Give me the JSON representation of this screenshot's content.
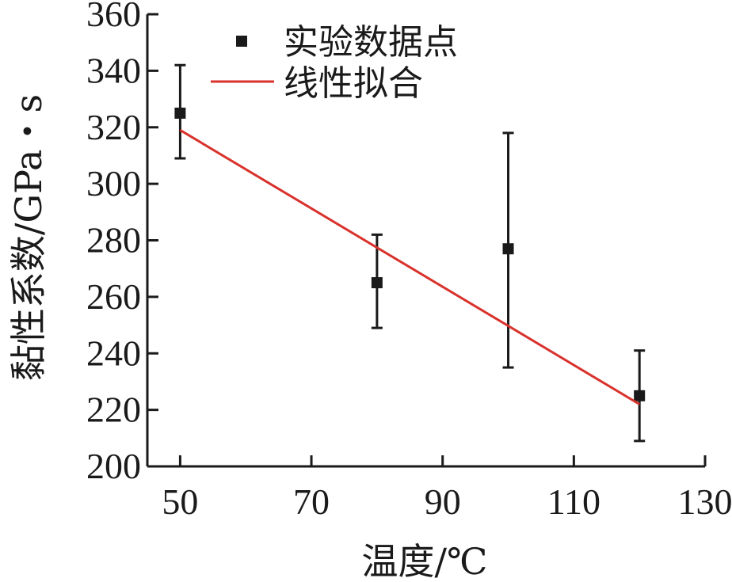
{
  "chart_data": {
    "type": "scatter",
    "title": "",
    "xlabel": "温度/℃",
    "ylabel": "黏性系数/GPa・s",
    "xlim": [
      45,
      130
    ],
    "ylim": [
      200,
      360
    ],
    "xticks": [
      50,
      70,
      90,
      110,
      130
    ],
    "yticks": [
      200,
      220,
      240,
      260,
      280,
      300,
      320,
      340,
      360
    ],
    "grid": false,
    "legend_position": "top-right",
    "series": [
      {
        "name": "实验数据点",
        "kind": "scatter-with-error-bars",
        "marker": "square",
        "color": "#1a1a1a",
        "points": [
          {
            "x": 50,
            "y": 325,
            "err_low": 309,
            "err_high": 342
          },
          {
            "x": 80,
            "y": 265,
            "err_low": 249,
            "err_high": 282
          },
          {
            "x": 100,
            "y": 277,
            "err_low": 235,
            "err_high": 318
          },
          {
            "x": 120,
            "y": 225,
            "err_low": 209,
            "err_high": 241
          }
        ]
      },
      {
        "name": "线性拟合",
        "kind": "line",
        "color": "#d9312b",
        "points": [
          {
            "x": 50,
            "y": 319
          },
          {
            "x": 120,
            "y": 222
          }
        ]
      }
    ]
  }
}
